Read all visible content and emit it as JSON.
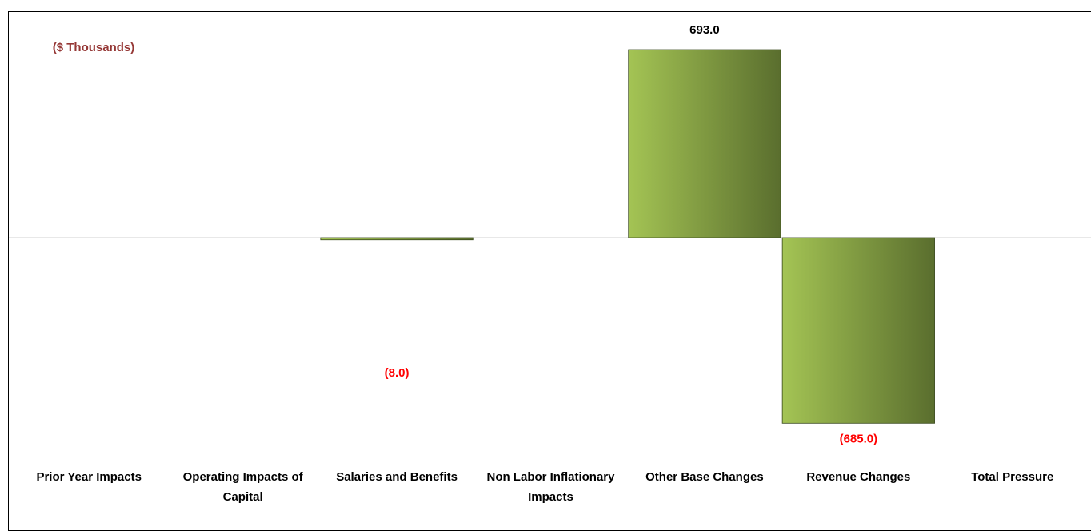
{
  "chart_data": {
    "type": "bar",
    "ylabel": "($ Thousands)",
    "categories": [
      "Prior Year Impacts",
      "Operating Impacts of Capital",
      "Salaries and Benefits",
      "Non Labor Inflationary Impacts",
      "Other Base Changes",
      "Revenue Changes",
      "Total Pressure"
    ],
    "values": [
      0,
      0,
      -8,
      0,
      693,
      -685,
      0
    ],
    "value_labels": [
      null,
      null,
      "(8.0)",
      null,
      "693.0",
      "(685.0)",
      null
    ],
    "colors": {
      "bar_light": "#a4c454",
      "bar_dark": "#5a6e2e",
      "positive_label": "#000000",
      "negative_label": "#ff0000"
    },
    "ylim": [
      -700,
      750
    ],
    "grid": false
  }
}
